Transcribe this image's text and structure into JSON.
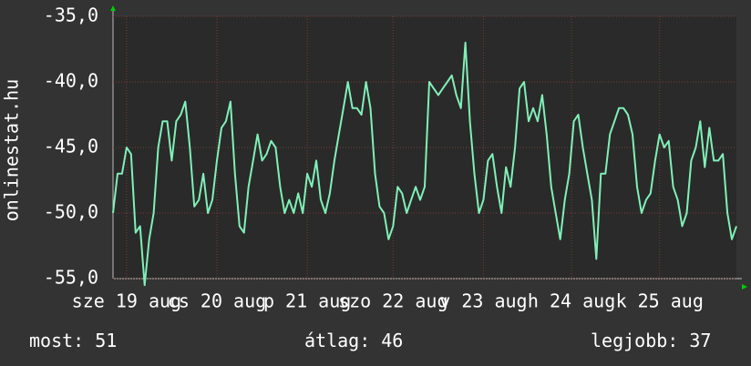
{
  "chart_data": {
    "type": "line",
    "y_label": "onlinestat.hu",
    "ylim": [
      -55,
      -35
    ],
    "yticks": [
      {
        "value": -35,
        "label": "-35,0"
      },
      {
        "value": -40,
        "label": "-40,0"
      },
      {
        "value": -45,
        "label": "-45,0"
      },
      {
        "value": -50,
        "label": "-50,0"
      },
      {
        "value": -55,
        "label": "-55,0"
      }
    ],
    "xlim": [
      0,
      138
    ],
    "xticks": [
      {
        "value": 3,
        "label": "sze 19 aug"
      },
      {
        "value": 23,
        "label": "cs 20 aug"
      },
      {
        "value": 43,
        "label": "p 21 aug"
      },
      {
        "value": 62,
        "label": "szo 22 aug"
      },
      {
        "value": 82,
        "label": "v 23 aug"
      },
      {
        "value": 101.5,
        "label": "h 24 aug"
      },
      {
        "value": 121,
        "label": "k 25 aug"
      }
    ],
    "grid": true,
    "color": "#80f0b8",
    "values": [
      -50,
      -47,
      -47,
      -45,
      -45.5,
      -51.5,
      -51,
      -55.5,
      -52,
      -50,
      -45,
      -43,
      -43,
      -46,
      -43,
      -42.5,
      -41.5,
      -45,
      -49.5,
      -49,
      -47,
      -50,
      -49,
      -46,
      -43.5,
      -43,
      -41.5,
      -47,
      -51,
      -51.5,
      -48,
      -46,
      -44,
      -46,
      -45.5,
      -44.5,
      -45,
      -48,
      -50,
      -49,
      -50,
      -48.5,
      -50,
      -47,
      -48,
      -46,
      -49,
      -50,
      -48.5,
      -46,
      -44,
      -42,
      -40,
      -42,
      -42,
      -42.5,
      -40,
      -42,
      -47,
      -49.5,
      -50,
      -52,
      -51,
      -48,
      -48.5,
      -50,
      -49,
      -48,
      -49,
      -48,
      -40,
      -40.5,
      -41,
      -40.5,
      -40,
      -39.5,
      -41,
      -42,
      -37,
      -43,
      -47,
      -50,
      -49,
      -46,
      -45.5,
      -48,
      -50,
      -46.5,
      -48,
      -45,
      -40.5,
      -40,
      -43,
      -42,
      -43,
      -41,
      -44,
      -48,
      -50,
      -52,
      -49,
      -47,
      -43,
      -42.5,
      -45,
      -47,
      -49,
      -53.5,
      -47,
      -47,
      -44,
      -43,
      -42,
      -42,
      -42.5,
      -44,
      -48,
      -50,
      -49,
      -48.5,
      -46,
      -44,
      -45,
      -44.5,
      -48,
      -49,
      -51,
      -50,
      -46,
      -45,
      -43,
      -46.5,
      -43.5,
      -46,
      -46,
      -45.5,
      -50,
      -52,
      -51
    ],
    "stats": [
      {
        "label": "most:",
        "value": 51
      },
      {
        "label": "átlag:",
        "value": 46
      },
      {
        "label": "legjobb:",
        "value": 37
      }
    ]
  }
}
